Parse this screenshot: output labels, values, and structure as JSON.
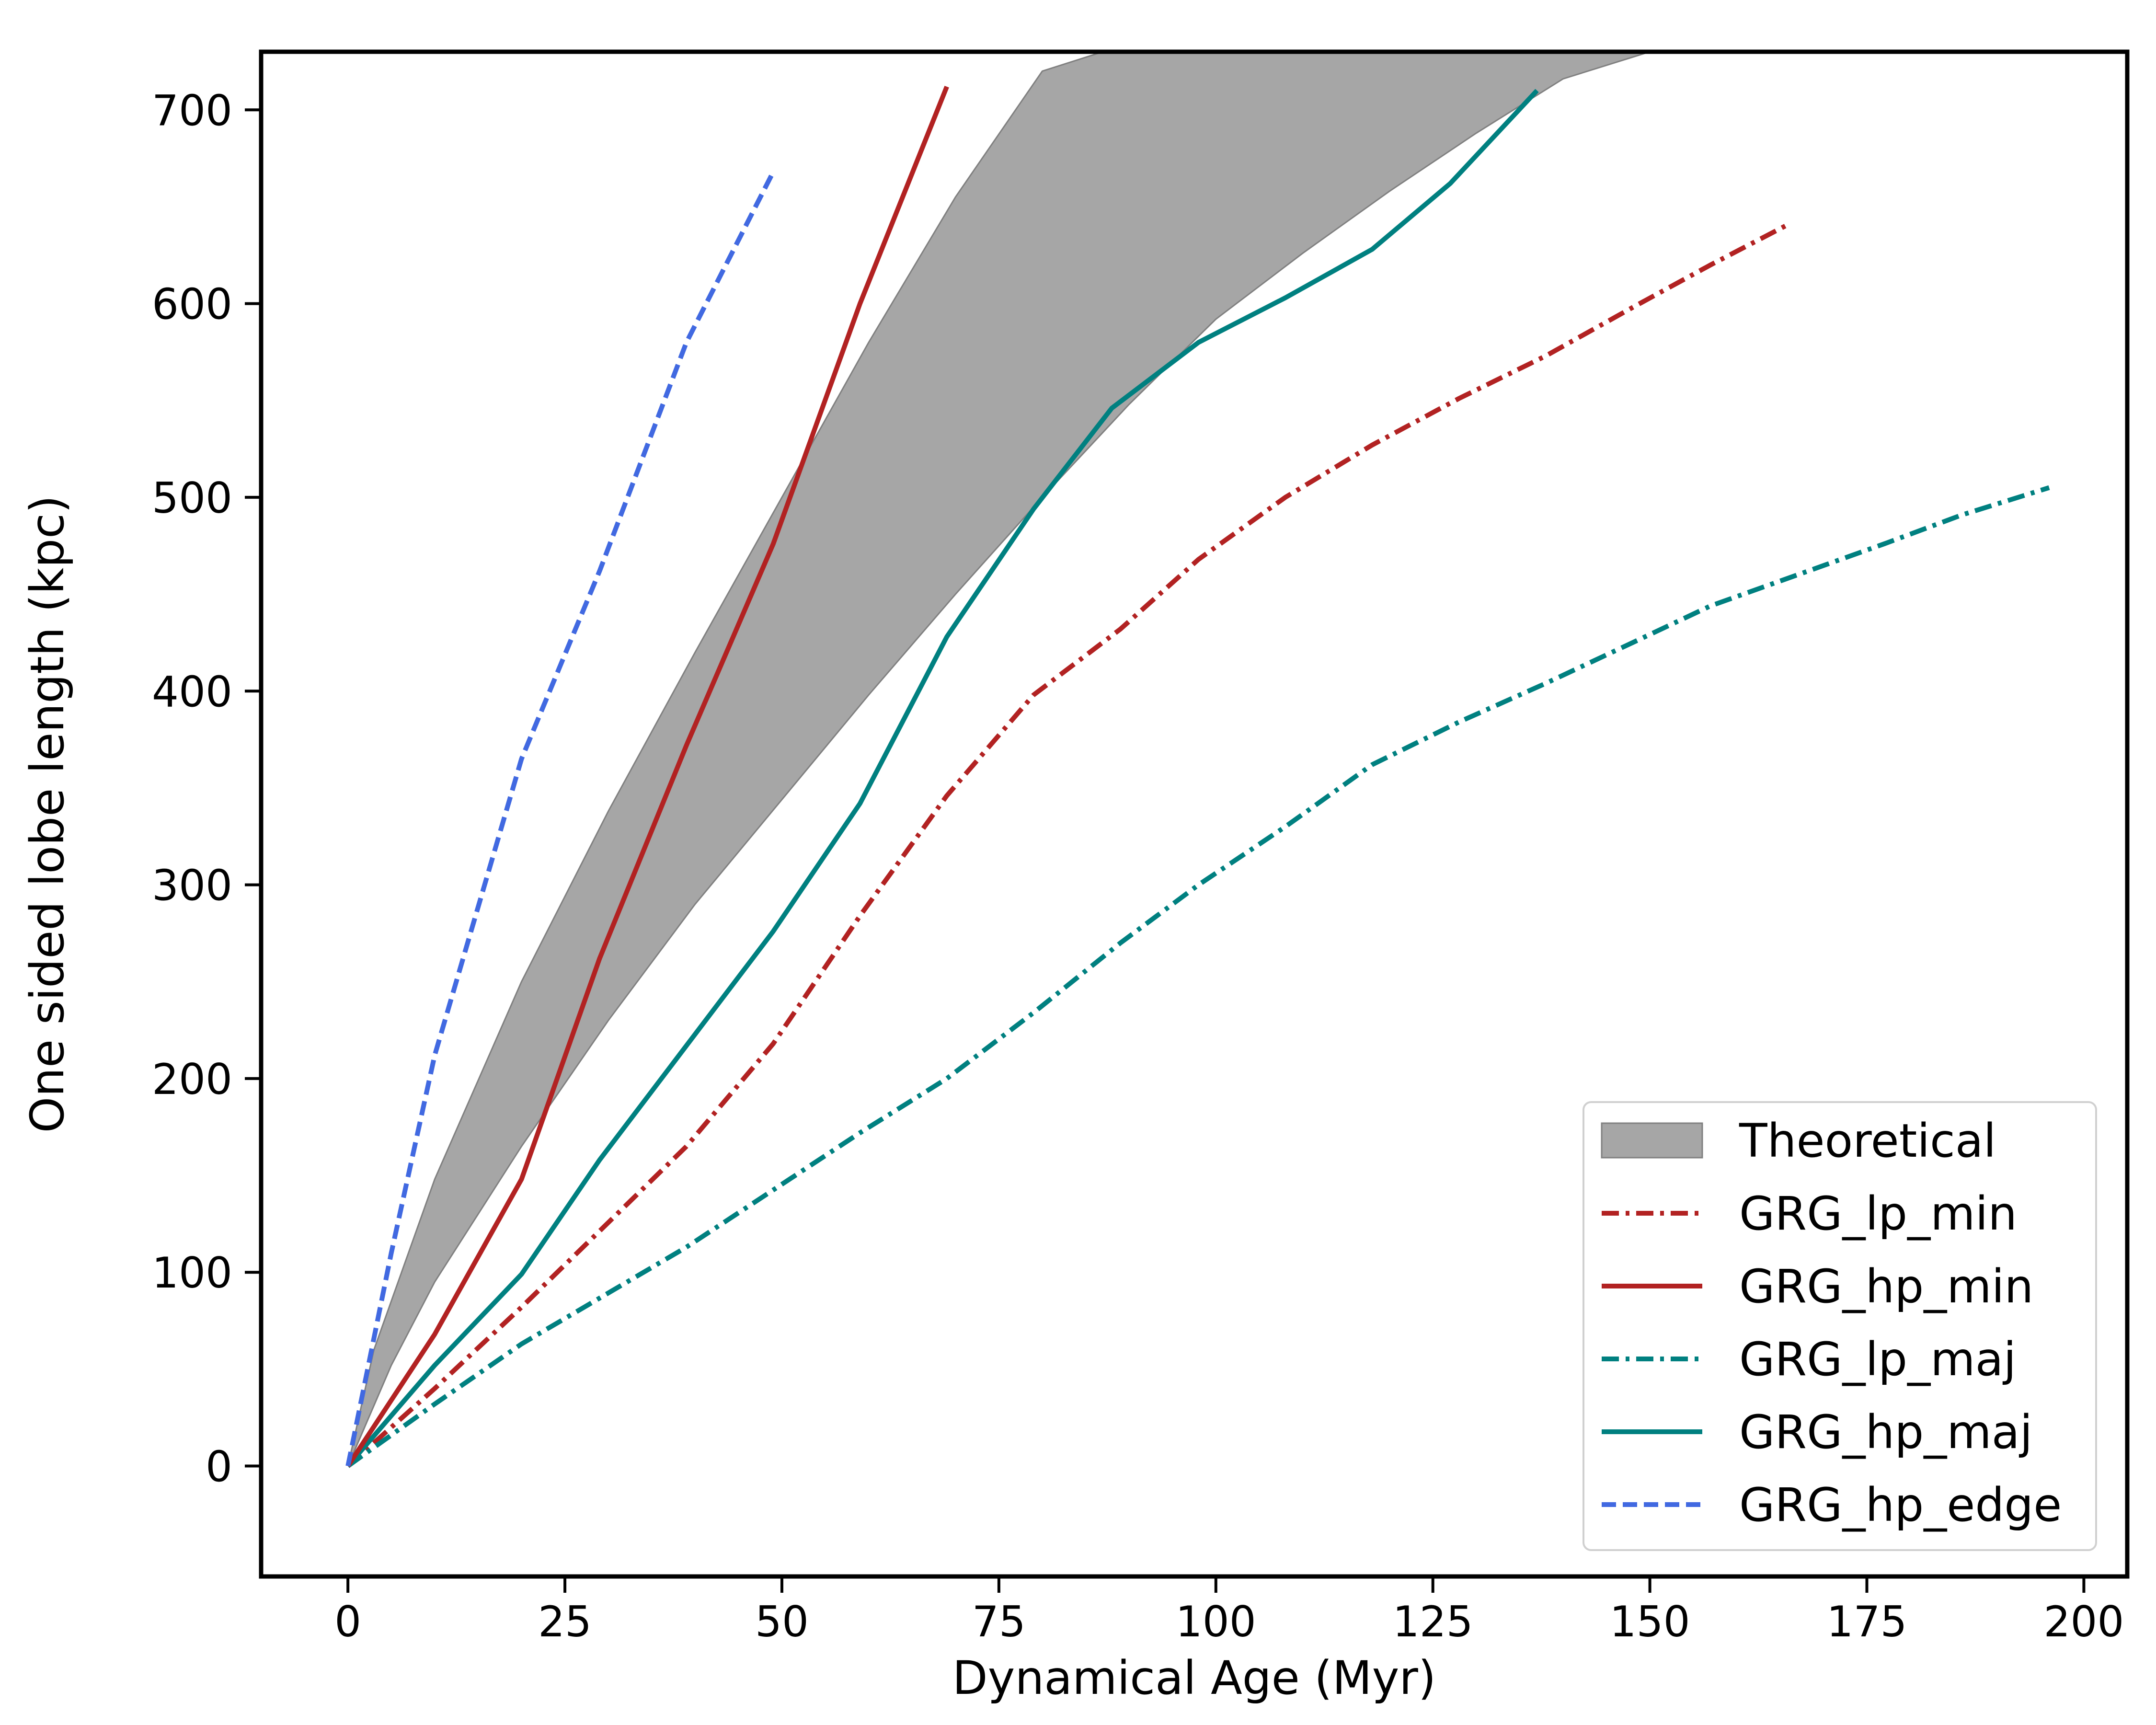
{
  "chart_data": {
    "type": "line",
    "title": "",
    "xlabel": "Dynamical Age (Myr)",
    "ylabel": "One sided lobe length (kpc)",
    "xlim": [
      -10,
      205
    ],
    "ylim": [
      -57,
      730
    ],
    "xticks": [
      0,
      25,
      50,
      75,
      100,
      125,
      150,
      175,
      200
    ],
    "yticks": [
      0,
      100,
      200,
      300,
      400,
      500,
      600,
      700
    ],
    "grid": false,
    "legend_position": "lower-right",
    "band": {
      "name": "Theoretical",
      "color": "#a6a6a6",
      "edge_color": "#808080",
      "upper": {
        "x": [
          0,
          3,
          10,
          20,
          30,
          40,
          50,
          60,
          70,
          80,
          87
        ],
        "y": [
          0,
          60,
          148,
          250,
          338,
          420,
          500,
          580,
          655,
          720,
          730
        ]
      },
      "lower": {
        "x": [
          0,
          5,
          10,
          20,
          30,
          40,
          50,
          60,
          70,
          80,
          90,
          100,
          110,
          120,
          130,
          140,
          150,
          157
        ],
        "y": [
          0,
          52,
          95,
          165,
          230,
          290,
          344,
          398,
          450,
          500,
          548,
          592,
          626,
          658,
          688,
          716,
          730,
          730
        ]
      }
    },
    "series": [
      {
        "name": "GRG_lp_min",
        "color": "#b22222",
        "dash": "dashdot",
        "x": [
          0,
          10,
          20,
          39,
          49,
          59,
          69,
          79,
          89,
          98,
          108,
          118,
          128,
          138,
          148,
          157,
          166
        ],
        "y": [
          0,
          40,
          82,
          165,
          218,
          284,
          346,
          398,
          432,
          468,
          500,
          527,
          551,
          573,
          598,
          620,
          641
        ]
      },
      {
        "name": "GRG_hp_min",
        "color": "#b22222",
        "dash": "solid",
        "x": [
          0,
          10,
          20,
          29,
          39,
          49,
          59,
          69
        ],
        "y": [
          0,
          68,
          148,
          262,
          372,
          476,
          600,
          712
        ]
      },
      {
        "name": "GRG_lp_maj",
        "color": "#008080",
        "dash": "dashdot",
        "x": [
          0,
          10,
          20,
          39,
          59,
          69,
          79,
          89,
          98,
          108,
          118,
          128,
          138,
          148,
          157,
          167,
          177,
          186,
          196
        ],
        "y": [
          0,
          32,
          63,
          113,
          172,
          200,
          234,
          270,
          300,
          330,
          362,
          384,
          404,
          425,
          444,
          460,
          476,
          491,
          505
        ]
      },
      {
        "name": "GRG_hp_maj",
        "color": "#008080",
        "dash": "solid",
        "x": [
          0,
          10,
          20,
          29,
          39,
          49,
          59,
          69,
          79,
          88,
          98,
          108,
          118,
          127,
          137
        ],
        "y": [
          0,
          52,
          99,
          158,
          217,
          276,
          342,
          428,
          494,
          546,
          580,
          603,
          628,
          662,
          710
        ]
      },
      {
        "name": "GRG_hp_edge",
        "color": "#4169e1",
        "dash": "dashed",
        "x": [
          0,
          5,
          10,
          20,
          29,
          39,
          49
        ],
        "y": [
          0,
          110,
          212,
          365,
          462,
          580,
          668
        ]
      }
    ]
  }
}
